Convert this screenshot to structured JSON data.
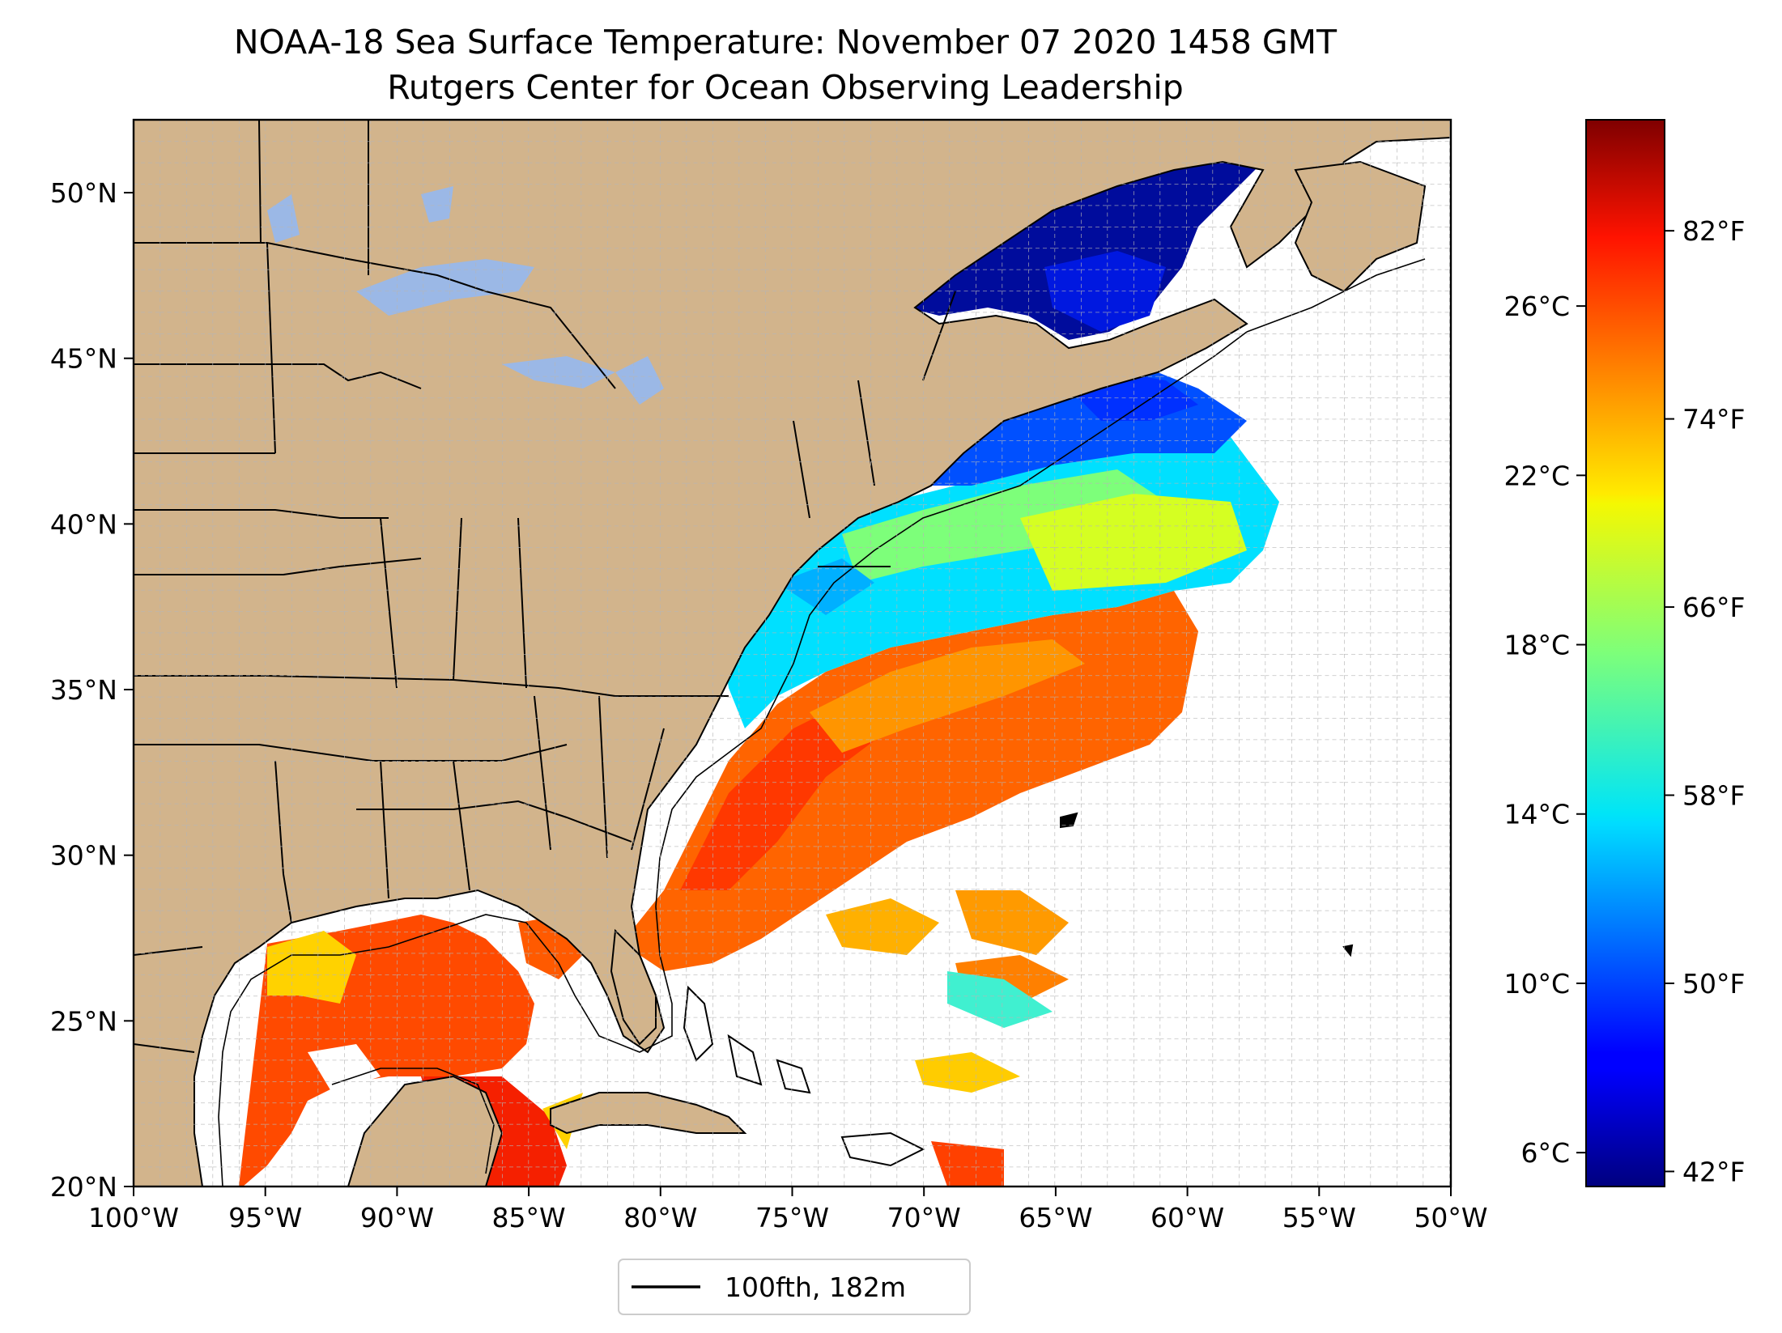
{
  "title": {
    "line1": "NOAA-18 Sea Surface Temperature: November 07 2020 1458 GMT",
    "line2": "Rutgers Center for Ocean Observing Leadership"
  },
  "map": {
    "projection": "plate-carree",
    "lon_range": [
      -100,
      -50
    ],
    "lat_range": [
      20,
      52.2
    ],
    "lon_ticks": [
      "100°W",
      "95°W",
      "90°W",
      "85°W",
      "80°W",
      "75°W",
      "70°W",
      "65°W",
      "60°W",
      "55°W",
      "50°W"
    ],
    "lat_ticks": [
      "20°N",
      "25°N",
      "30°N",
      "35°N",
      "40°N",
      "45°N",
      "50°N"
    ],
    "land_color": "#d2b48c",
    "lake_color": "#9bb8e6",
    "ocean_nodata_color": "#ffffff",
    "gridlines": "dashed, 1° spacing"
  },
  "colorbar": {
    "colormap": "jet",
    "range_c": [
      5.2,
      30.4
    ],
    "celsius_ticks": [
      "6°C",
      "10°C",
      "14°C",
      "18°C",
      "22°C",
      "26°C"
    ],
    "fahrenheit_ticks": [
      "42°F",
      "50°F",
      "58°F",
      "66°F",
      "74°F",
      "82°F"
    ]
  },
  "legend": {
    "label": "100fth, 182m",
    "line_color": "#000000"
  }
}
